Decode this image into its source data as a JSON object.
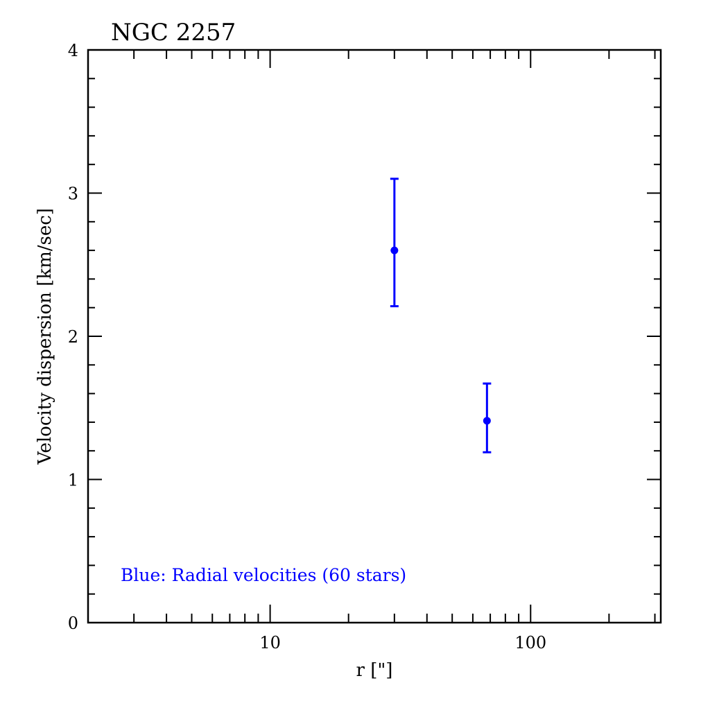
{
  "chart_data": {
    "type": "scatter",
    "title": "NGC 2257",
    "xlabel": "r [\"]",
    "ylabel": "Velocity dispersion [km/sec]",
    "xscale": "log",
    "xlim": [
      2,
      316
    ],
    "ylim": [
      0,
      4
    ],
    "x_tick_labels": [
      "10",
      "100"
    ],
    "x_ticks": [
      10,
      100
    ],
    "y_tick_labels": [
      "0",
      "1",
      "2",
      "3",
      "4"
    ],
    "y_ticks": [
      0,
      1,
      2,
      3,
      4
    ],
    "grid": false,
    "annotation": "Blue: Radial velocities (60 stars)",
    "series": [
      {
        "name": "Radial velocities",
        "color": "#0000ff",
        "points": [
          {
            "x": 30,
            "y": 2.6,
            "y_low": 2.21,
            "y_high": 3.1
          },
          {
            "x": 68,
            "y": 1.41,
            "y_low": 1.19,
            "y_high": 1.67
          }
        ]
      }
    ]
  }
}
